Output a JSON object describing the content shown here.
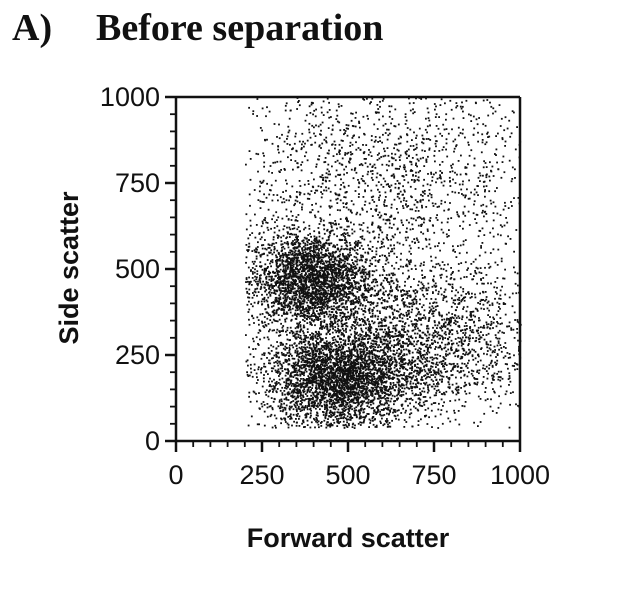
{
  "panel": {
    "label": "A)",
    "title": "Before separation"
  },
  "chart_data": {
    "type": "scatter",
    "xlabel": "Forward scatter",
    "ylabel": "Side scatter",
    "xlim": [
      0,
      1000
    ],
    "ylim": [
      0,
      1000
    ],
    "xticks": [
      "0",
      "250",
      "500",
      "750",
      "1000"
    ],
    "yticks": [
      "0",
      "250",
      "500",
      "750",
      "1000"
    ],
    "grid": false,
    "legend": "none",
    "point_color": "#111111",
    "clusters": [
      {
        "center": [
          390,
          470
        ],
        "spread": [
          90,
          70
        ],
        "points": 2600
      },
      {
        "center": [
          470,
          180
        ],
        "spread": [
          110,
          75
        ],
        "points": 3200
      },
      {
        "center": [
          700,
          290
        ],
        "spread": [
          170,
          110
        ],
        "points": 2000
      },
      {
        "center": [
          600,
          750
        ],
        "spread": [
          260,
          210
        ],
        "points": 2200
      }
    ]
  }
}
